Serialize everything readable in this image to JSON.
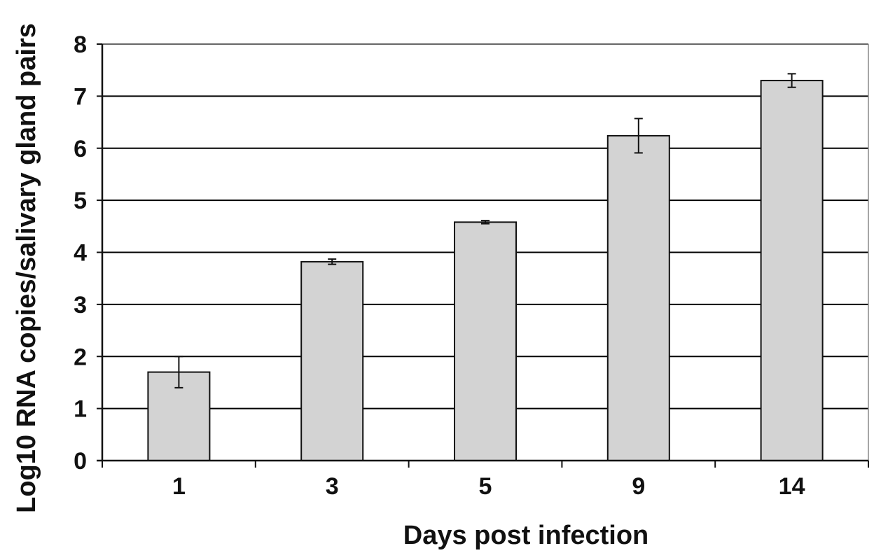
{
  "chart_data": {
    "type": "bar",
    "title": "",
    "xlabel": "Days post infection",
    "ylabel": "Log10 RNA copies/salivary gland pairs",
    "categories": [
      "1",
      "3",
      "5",
      "9",
      "14"
    ],
    "values": [
      1.7,
      3.82,
      4.58,
      6.24,
      7.3
    ],
    "errors": [
      0.3,
      0.05,
      0.03,
      0.33,
      0.13
    ],
    "ylim": [
      0,
      8
    ],
    "yticks": [
      "0",
      "1",
      "2",
      "3",
      "4",
      "5",
      "6",
      "7",
      "8"
    ],
    "grid": "horizontal",
    "legend": "none",
    "colors": {
      "bar_fill": "#d3d3d3",
      "bar_stroke": "#111111",
      "grid": "#000000",
      "frame": "#888888"
    }
  }
}
